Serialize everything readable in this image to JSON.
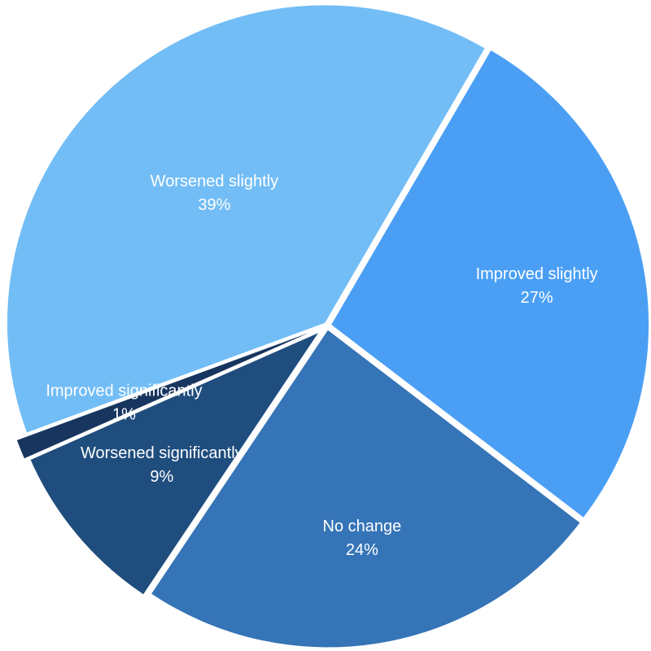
{
  "chart_data": {
    "type": "pie",
    "title": "",
    "unit": "%",
    "slices": [
      {
        "label": "Improved slightly",
        "value": 27,
        "value_label": "27%",
        "color": "#4a9ff5"
      },
      {
        "label": "No change",
        "value": 24,
        "value_label": "24%",
        "color": "#3574b7"
      },
      {
        "label": "Worsened significantly",
        "value": 9,
        "value_label": "9%",
        "color": "#1f4d7e"
      },
      {
        "label": "Improved significantly",
        "value": 1,
        "value_label": "1%",
        "color": "#17355f"
      },
      {
        "label": "Worsened slightly",
        "value": 39,
        "value_label": "39%",
        "color": "#72bdf6"
      }
    ],
    "legend": "none",
    "labels_on_slices": true
  }
}
